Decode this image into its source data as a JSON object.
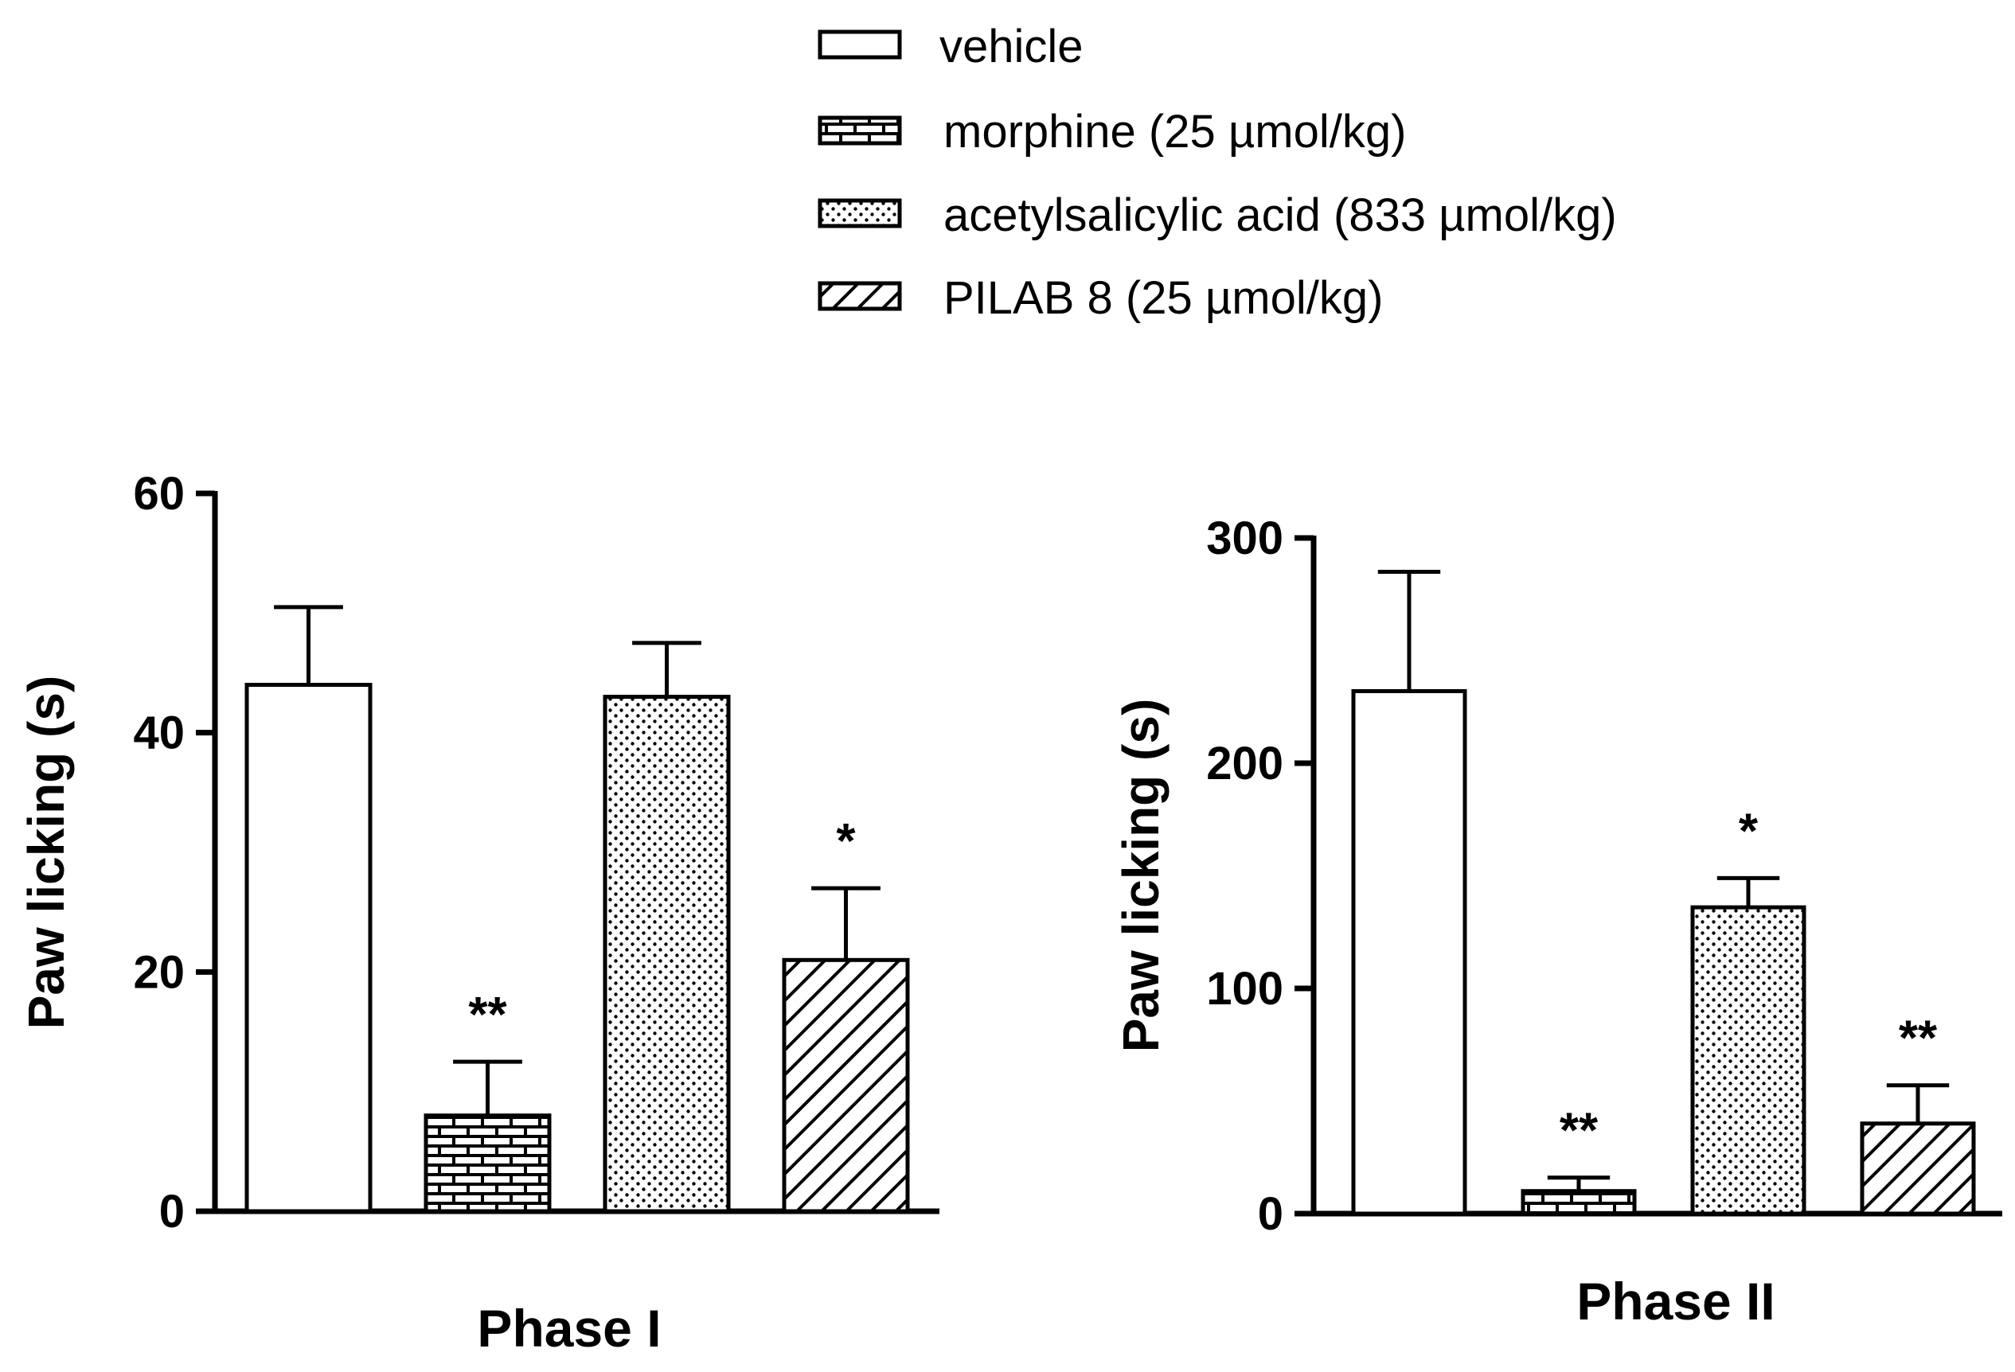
{
  "legend": [
    {
      "label": "vehicle",
      "pattern": "blank"
    },
    {
      "label": "morphine (25 µmol/kg)",
      "pattern": "brick"
    },
    {
      "label": "acetylsalicylic acid (833 µmol/kg)",
      "pattern": "dots"
    },
    {
      "label": "PILAB 8 (25 µmol/kg)",
      "pattern": "hatch"
    }
  ],
  "chart_data": [
    {
      "type": "bar",
      "title": "",
      "xlabel": "Phase I",
      "ylabel": "Paw licking (s)",
      "ylim": [
        0,
        60
      ],
      "yticks": [
        0,
        20,
        40,
        60
      ],
      "categories": [
        "vehicle",
        "morphine (25 µmol/kg)",
        "acetylsalicylic acid (833 µmol/kg)",
        "PILAB 8 (25 µmol/kg)"
      ],
      "values": [
        44,
        8,
        43,
        21
      ],
      "errors": [
        6.5,
        4.5,
        4.5,
        6
      ],
      "significance": [
        "",
        "**",
        "",
        "*"
      ]
    },
    {
      "type": "bar",
      "title": "",
      "xlabel": "Phase II",
      "ylabel": "Paw licking (s)",
      "ylim": [
        0,
        300
      ],
      "yticks": [
        0,
        100,
        200,
        300
      ],
      "categories": [
        "vehicle",
        "morphine (25 µmol/kg)",
        "acetylsalicylic acid (833 µmol/kg)",
        "PILAB 8 (25 µmol/kg)"
      ],
      "values": [
        232,
        10,
        136,
        40
      ],
      "errors": [
        53,
        6,
        13,
        17
      ],
      "significance": [
        "",
        "**",
        "*",
        "**"
      ]
    }
  ],
  "colors": {
    "ink": "#000000",
    "fill": "#ffffff"
  }
}
